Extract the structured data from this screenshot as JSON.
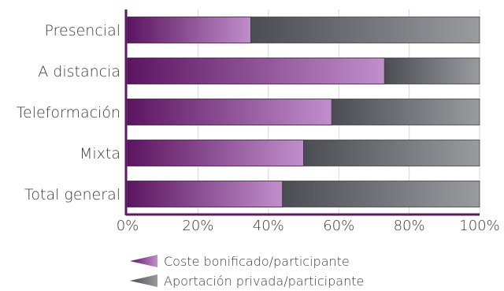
{
  "chart_data": {
    "type": "bar",
    "orientation": "horizontal",
    "stacked": true,
    "percent": true,
    "categories": [
      "Presencial",
      "A distancia",
      "Teleformación",
      "Mixta",
      "Total general"
    ],
    "series": [
      {
        "name": "Coste bonificado/participante",
        "values": [
          35,
          73,
          58,
          50,
          44
        ],
        "color": "#8a3f8c"
      },
      {
        "name": "Aportación privada/participante",
        "values": [
          65,
          27,
          42,
          50,
          56
        ],
        "color": "#5f6166"
      }
    ],
    "xlim": [
      0,
      100
    ],
    "xticks": [
      "0%",
      "20%",
      "40%",
      "60%",
      "80%",
      "100%"
    ],
    "grid": true,
    "legend_position": "bottom"
  }
}
